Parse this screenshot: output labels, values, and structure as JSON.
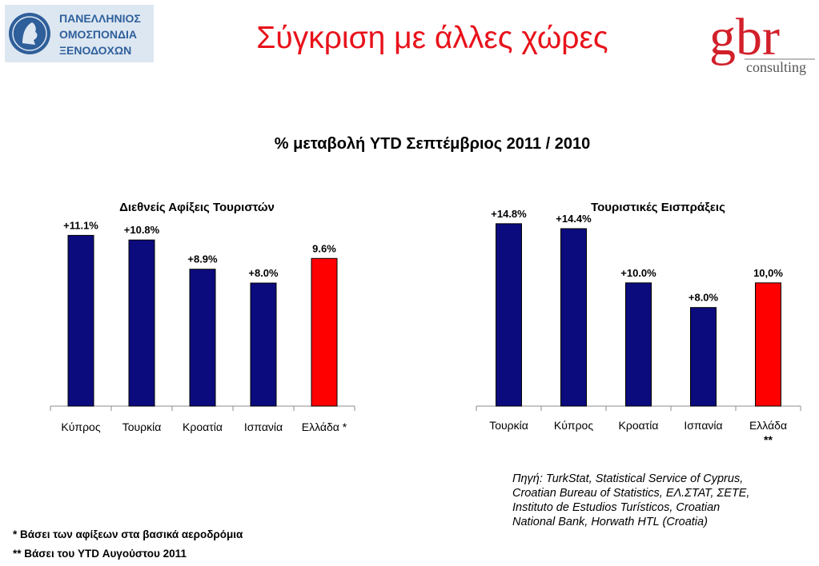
{
  "header": {
    "title": "Σύγκριση με άλλες χώρες",
    "subtitle": "% μεταβολή YTD Σεπτέμβριος 2011 / 2010",
    "logo_left_lines": [
      "ΠΑΝΕΛΛΗΝΙΟΣ",
      "ΟΜΟΣΠΟΝΔΙΑ",
      "ΞΕΝΟΔΟΧΩΝ"
    ],
    "logo_right_main": "gbr",
    "logo_right_sub": "consulting"
  },
  "colors": {
    "title": "#e8121b",
    "bar": "#0b0b7e",
    "highlight": "#ff0000"
  },
  "chart_data": [
    {
      "type": "bar",
      "title": "Διεθνείς Αφίξεις Τουριστών",
      "categories": [
        "Κύπρος",
        "Τουρκία",
        "Κροατία",
        "Ισπανία",
        "Ελλάδα *"
      ],
      "values": [
        11.1,
        10.8,
        8.9,
        8.0,
        9.6
      ],
      "data_labels": [
        "+11.1%",
        "+10.8%",
        "+8.9%",
        "+8.0%",
        "9.6%"
      ],
      "highlight_index": 4,
      "ylim": [
        0,
        13.2
      ],
      "grid": false,
      "legend": "none"
    },
    {
      "type": "bar",
      "title": "Τουριστικές Εισπράξεις",
      "categories": [
        "Τουρκία",
        "Κύπρος",
        "Κροατία",
        "Ισπανία",
        "Ελλάδα\n**"
      ],
      "values": [
        14.8,
        14.4,
        10.0,
        8.0,
        10.0
      ],
      "data_labels": [
        "+14.8%",
        "+14.4%",
        "+10.0%",
        "+8.0%",
        "10,0%"
      ],
      "highlight_index": 4,
      "ylim": [
        0,
        16.8
      ],
      "grid": false,
      "legend": "none"
    }
  ],
  "source_note": "Πηγή: TurkStat, Statistical Service of Cyprus, Croatian Bureau of Statistics, ΕΛ.ΣΤΑΤ, ΣΕΤΕ, Instituto de Estudios Turísticos, Croatian National Bank, Horwath HTL (Croatia)",
  "footnotes": {
    "first": "* Βάσει των αφίξεων στα βασικά αεροδρόμια",
    "second": "** Βάσει του YTD Αυγούστου 2011"
  }
}
